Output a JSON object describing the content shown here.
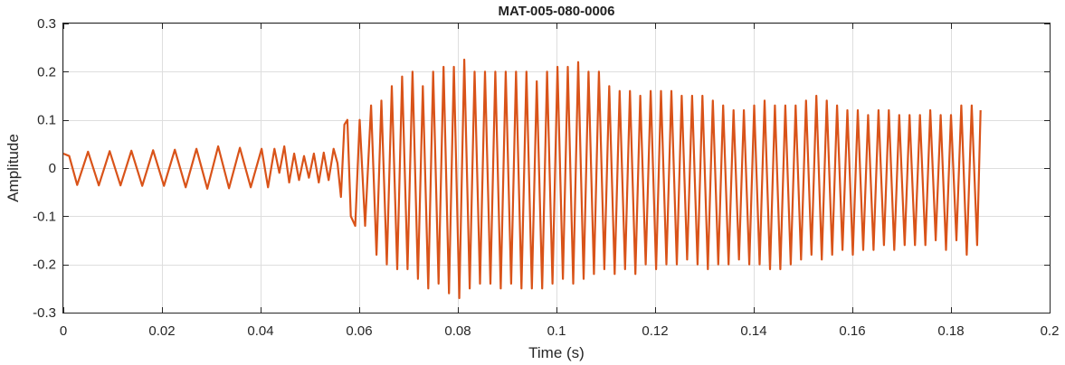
{
  "chart_data": {
    "type": "line",
    "title": "MAT-005-080-0006",
    "xlabel": "Time (s)",
    "ylabel": "Amplitude",
    "xlim": [
      0,
      0.2
    ],
    "ylim": [
      -0.3,
      0.3
    ],
    "xticks": [
      0,
      0.02,
      0.04,
      0.06,
      0.08,
      0.1,
      0.12,
      0.14,
      0.16,
      0.18,
      0.2
    ],
    "xtick_labels": [
      "0",
      "0.02",
      "0.04",
      "0.06",
      "0.08",
      "0.1",
      "0.12",
      "0.14",
      "0.16",
      "0.18",
      "0.2"
    ],
    "yticks": [
      0.3,
      0.2,
      0.1,
      0,
      -0.1,
      -0.2,
      -0.3
    ],
    "ytick_labels": [
      "0.3",
      "0.2",
      "0.1",
      "0",
      "-0.1",
      "-0.2",
      "-0.3"
    ],
    "grid": true,
    "series": [
      {
        "color": "#D95319",
        "x": [
          0,
          0.0012,
          0.0028,
          0.005,
          0.0072,
          0.0094,
          0.0116,
          0.0138,
          0.016,
          0.0182,
          0.0204,
          0.0226,
          0.0248,
          0.027,
          0.0292,
          0.0314,
          0.0336,
          0.0358,
          0.038,
          0.0402,
          0.0415,
          0.0428,
          0.0438,
          0.0448,
          0.0458,
          0.0468,
          0.0478,
          0.0488,
          0.0498,
          0.0508,
          0.0518,
          0.0528,
          0.0538,
          0.0548,
          0.0556,
          0.0563,
          0.057,
          0.0576,
          0.0583,
          0.0592,
          0.0601,
          0.0612,
          0.0624,
          0.0635,
          0.0645,
          0.0656,
          0.0666,
          0.0677,
          0.0687,
          0.0698,
          0.0708,
          0.0719,
          0.0729,
          0.074,
          0.075,
          0.0761,
          0.0771,
          0.0782,
          0.0792,
          0.0803,
          0.0813,
          0.0824,
          0.0834,
          0.0845,
          0.0855,
          0.0866,
          0.0876,
          0.0887,
          0.0897,
          0.0908,
          0.0918,
          0.0929,
          0.0939,
          0.095,
          0.096,
          0.0971,
          0.0981,
          0.0992,
          0.1002,
          0.1013,
          0.1023,
          0.1034,
          0.1044,
          0.1055,
          0.1065,
          0.1076,
          0.1086,
          0.1097,
          0.1107,
          0.1118,
          0.1128,
          0.1139,
          0.1149,
          0.116,
          0.117,
          0.1181,
          0.1191,
          0.1202,
          0.1212,
          0.1223,
          0.1233,
          0.1244,
          0.1254,
          0.1265,
          0.1275,
          0.1286,
          0.1296,
          0.1307,
          0.1317,
          0.1328,
          0.1338,
          0.1349,
          0.1359,
          0.137,
          0.138,
          0.1391,
          0.1401,
          0.1412,
          0.1422,
          0.1433,
          0.1443,
          0.1454,
          0.1464,
          0.1475,
          0.1485,
          0.1496,
          0.1506,
          0.1517,
          0.1527,
          0.1538,
          0.1548,
          0.1559,
          0.1569,
          0.158,
          0.159,
          0.1601,
          0.1611,
          0.1622,
          0.1632,
          0.1643,
          0.1653,
          0.1664,
          0.1674,
          0.1685,
          0.1695,
          0.1706,
          0.1716,
          0.1727,
          0.1737,
          0.1748,
          0.1758,
          0.1769,
          0.1779,
          0.179,
          0.18,
          0.1811,
          0.1821,
          0.1832,
          0.1842,
          0.1853,
          0.186
        ],
        "y": [
          0.03,
          0.025,
          -0.035,
          0.034,
          -0.036,
          0.035,
          -0.036,
          0.036,
          -0.037,
          0.037,
          -0.037,
          0.038,
          -0.04,
          0.04,
          -0.043,
          0.045,
          -0.042,
          0.042,
          -0.04,
          0.04,
          -0.04,
          0.04,
          -0.01,
          0.045,
          -0.03,
          0.03,
          -0.025,
          0.025,
          -0.02,
          0.03,
          -0.03,
          0.032,
          -0.025,
          0.04,
          0.01,
          -0.06,
          0.09,
          0.1,
          -0.1,
          -0.12,
          0.1,
          -0.12,
          0.13,
          -0.18,
          0.14,
          -0.2,
          0.17,
          -0.21,
          0.19,
          -0.21,
          0.2,
          -0.23,
          0.17,
          -0.25,
          0.2,
          -0.24,
          0.21,
          -0.26,
          0.21,
          -0.27,
          0.225,
          -0.25,
          0.2,
          -0.24,
          0.2,
          -0.24,
          0.2,
          -0.25,
          0.2,
          -0.24,
          0.2,
          -0.25,
          0.2,
          -0.25,
          0.18,
          -0.25,
          0.2,
          -0.24,
          0.21,
          -0.23,
          0.21,
          -0.24,
          0.22,
          -0.23,
          0.2,
          -0.22,
          0.2,
          -0.21,
          0.17,
          -0.22,
          0.16,
          -0.21,
          0.16,
          -0.22,
          0.15,
          -0.2,
          0.16,
          -0.21,
          0.16,
          -0.2,
          0.16,
          -0.2,
          0.15,
          -0.19,
          0.15,
          -0.2,
          0.15,
          -0.21,
          0.14,
          -0.2,
          0.13,
          -0.2,
          0.12,
          -0.19,
          0.12,
          -0.2,
          0.13,
          -0.2,
          0.14,
          -0.21,
          0.13,
          -0.21,
          0.13,
          -0.2,
          0.13,
          -0.19,
          0.14,
          -0.18,
          0.15,
          -0.19,
          0.14,
          -0.18,
          0.13,
          -0.17,
          0.12,
          -0.18,
          0.12,
          -0.17,
          0.11,
          -0.17,
          0.12,
          -0.16,
          0.12,
          -0.17,
          0.11,
          -0.16,
          0.11,
          -0.16,
          0.11,
          -0.16,
          0.12,
          -0.15,
          0.11,
          -0.17,
          0.11,
          -0.15,
          0.13,
          -0.18,
          0.13,
          -0.16,
          0.12
        ]
      }
    ]
  }
}
